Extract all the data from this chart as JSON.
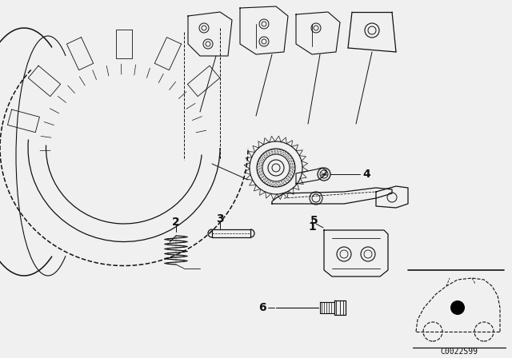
{
  "background_color": "#f0f0f0",
  "diagram_id": "C0022S99",
  "line_color": "#111111",
  "bg": "#f0f0f0",
  "part_labels": [
    "1",
    "2",
    "3",
    "4",
    "5",
    "6"
  ]
}
